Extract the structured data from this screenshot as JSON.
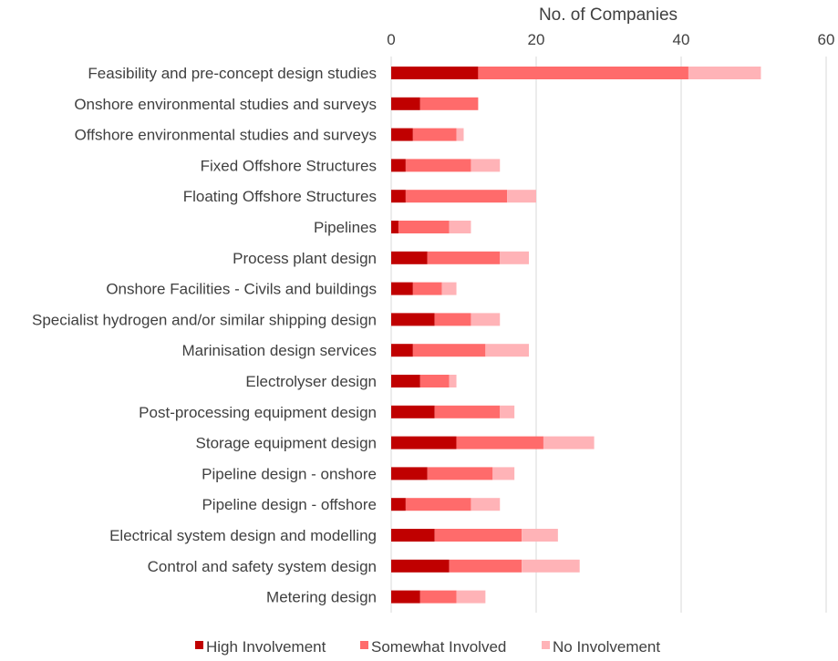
{
  "chart_data": {
    "type": "bar",
    "orientation": "horizontal",
    "stacked": true,
    "xlabel": "No. of Companies",
    "xlabel_position": "top",
    "xlim": [
      0,
      60
    ],
    "xticks": [
      0,
      20,
      40,
      60
    ],
    "grid": true,
    "legend_position": "bottom",
    "categories": [
      "Feasibility and pre-concept design studies",
      "Onshore environmental studies and surveys",
      "Offshore environmental studies and surveys",
      "Fixed Offshore Structures",
      "Floating Offshore Structures",
      "Pipelines",
      "Process plant design",
      "Onshore Facilities - Civils and buildings",
      "Specialist hydrogen and/or similar shipping design",
      "Marinisation design services",
      "Electrolyser design",
      "Post-processing equipment design",
      "Storage equipment design",
      "Pipeline design - onshore",
      "Pipeline design - offshore",
      "Electrical system design and modelling",
      "Control and safety system design",
      "Metering design"
    ],
    "series": [
      {
        "name": "High Involvement",
        "color": "#c00000",
        "values": [
          12,
          4,
          3,
          2,
          2,
          1,
          5,
          3,
          6,
          3,
          4,
          6,
          9,
          5,
          2,
          6,
          8,
          4
        ]
      },
      {
        "name": "Somewhat Involved",
        "color": "#ff6b6b",
        "values": [
          29,
          8,
          6,
          9,
          14,
          7,
          10,
          4,
          5,
          10,
          4,
          9,
          12,
          9,
          9,
          12,
          10,
          5
        ]
      },
      {
        "name": "No Involvement",
        "color": "#ffb3b7",
        "values": [
          10,
          0,
          1,
          4,
          4,
          3,
          4,
          2,
          4,
          6,
          1,
          2,
          7,
          3,
          4,
          5,
          8,
          4
        ]
      }
    ]
  }
}
